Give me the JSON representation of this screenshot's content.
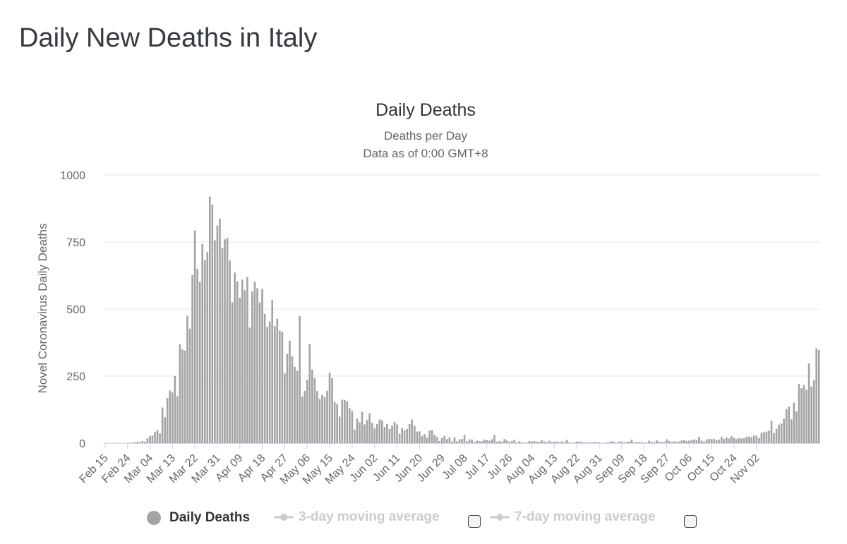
{
  "page": {
    "title": "Daily New Deaths in Italy"
  },
  "colors": {
    "bar": "#a3a3a3",
    "grid": "#e6e6e6",
    "text": "#666666",
    "title": "#333333",
    "legend_inactive": "#cccccc"
  },
  "legend": [
    {
      "label": "Daily Deaths",
      "active": true,
      "marker": "circle"
    },
    {
      "label": "3-day moving average",
      "active": false,
      "marker": "line-circle"
    },
    {
      "label": "7-day moving average",
      "active": false,
      "marker": "line-diamond"
    }
  ],
  "chart_data": {
    "type": "bar",
    "title": "Daily Deaths",
    "subtitle": [
      "Deaths per Day",
      "Data as of 0:00 GMT+8"
    ],
    "ylabel": "Novel Coronavirus Daily Deaths",
    "ylim": [
      0,
      1000
    ],
    "yticks": [
      0,
      250,
      500,
      750,
      1000
    ],
    "grid": true,
    "legend_position": "bottom-center",
    "x_tick_labels": [
      "Feb 15",
      "Feb 24",
      "Mar 04",
      "Mar 13",
      "Mar 22",
      "Mar 31",
      "Apr 09",
      "Apr 18",
      "Apr 27",
      "May 06",
      "May 15",
      "May 24",
      "Jun 02",
      "Jun 11",
      "Jun 20",
      "Jun 29",
      "Jul 08",
      "Jul 17",
      "Jul 26",
      "Aug 04",
      "Aug 13",
      "Aug 22",
      "Aug 31",
      "Sep 09",
      "Sep 18",
      "Sep 27",
      "Oct 06",
      "Oct 15",
      "Oct 24",
      "Nov 02"
    ],
    "start_date": "Feb 15",
    "series": [
      {
        "name": "Daily Deaths",
        "values": [
          0,
          0,
          0,
          0,
          0,
          0,
          0,
          0,
          0,
          0,
          1,
          2,
          3,
          5,
          4,
          8,
          5,
          18,
          27,
          28,
          41,
          49,
          36,
          133,
          97,
          168,
          196,
          189,
          250,
          175,
          368,
          349,
          345,
          475,
          427,
          627,
          793,
          651,
          601,
          743,
          683,
          712,
          919,
          889,
          756,
          812,
          837,
          727,
          760,
          766,
          681,
          525,
          636,
          604,
          542,
          610,
          570,
          619,
          431,
          566,
          602,
          578,
          525,
          575,
          482,
          433,
          454,
          534,
          437,
          464,
          420,
          415,
          260,
          333,
          382,
          323,
          285,
          269,
          474,
          174,
          195,
          236,
          369,
          274,
          243,
          194,
          165,
          179,
          172,
          195,
          262,
          242,
          153,
          145,
          99,
          162,
          161,
          156,
          130,
          119,
          50,
          92,
          78,
          117,
          70,
          87,
          111,
          75,
          55,
          71,
          88,
          85,
          60,
          72,
          53,
          65,
          79,
          70,
          35,
          56,
          47,
          53,
          71,
          88,
          65,
          43,
          44,
          26,
          34,
          21,
          47,
          49,
          31,
          23,
          8,
          19,
          27,
          15,
          21,
          6,
          22,
          7,
          14,
          15,
          30,
          7,
          14,
          13,
          4,
          9,
          8,
          7,
          13,
          11,
          9,
          14,
          30,
          5,
          8,
          5,
          15,
          10,
          5,
          8,
          12,
          2,
          7,
          3,
          1,
          2,
          8,
          6,
          8,
          5,
          5,
          11,
          6,
          3,
          9,
          4,
          5,
          6,
          3,
          6,
          3,
          12,
          3,
          0,
          3,
          6,
          5,
          5,
          3,
          2,
          3,
          3,
          4,
          4,
          3,
          0,
          1,
          2,
          4,
          7,
          5,
          1,
          6,
          5,
          3,
          4,
          6,
          13,
          2,
          4,
          3,
          4,
          2,
          2,
          9,
          5,
          3,
          10,
          5,
          4,
          4,
          14,
          8,
          4,
          7,
          4,
          6,
          10,
          11,
          8,
          9,
          11,
          14,
          11,
          24,
          10,
          6,
          14,
          16,
          15,
          16,
          11,
          13,
          23,
          16,
          21,
          17,
          26,
          19,
          15,
          19,
          17,
          18,
          24,
          24,
          22,
          28,
          28,
          19,
          39,
          41,
          43,
          47,
          83,
          37,
          54,
          69,
          73,
          91,
          127,
          136,
          89,
          151,
          118,
          221,
          205,
          217,
          199,
          297,
          211,
          235,
          353,
          348
        ]
      }
    ]
  }
}
